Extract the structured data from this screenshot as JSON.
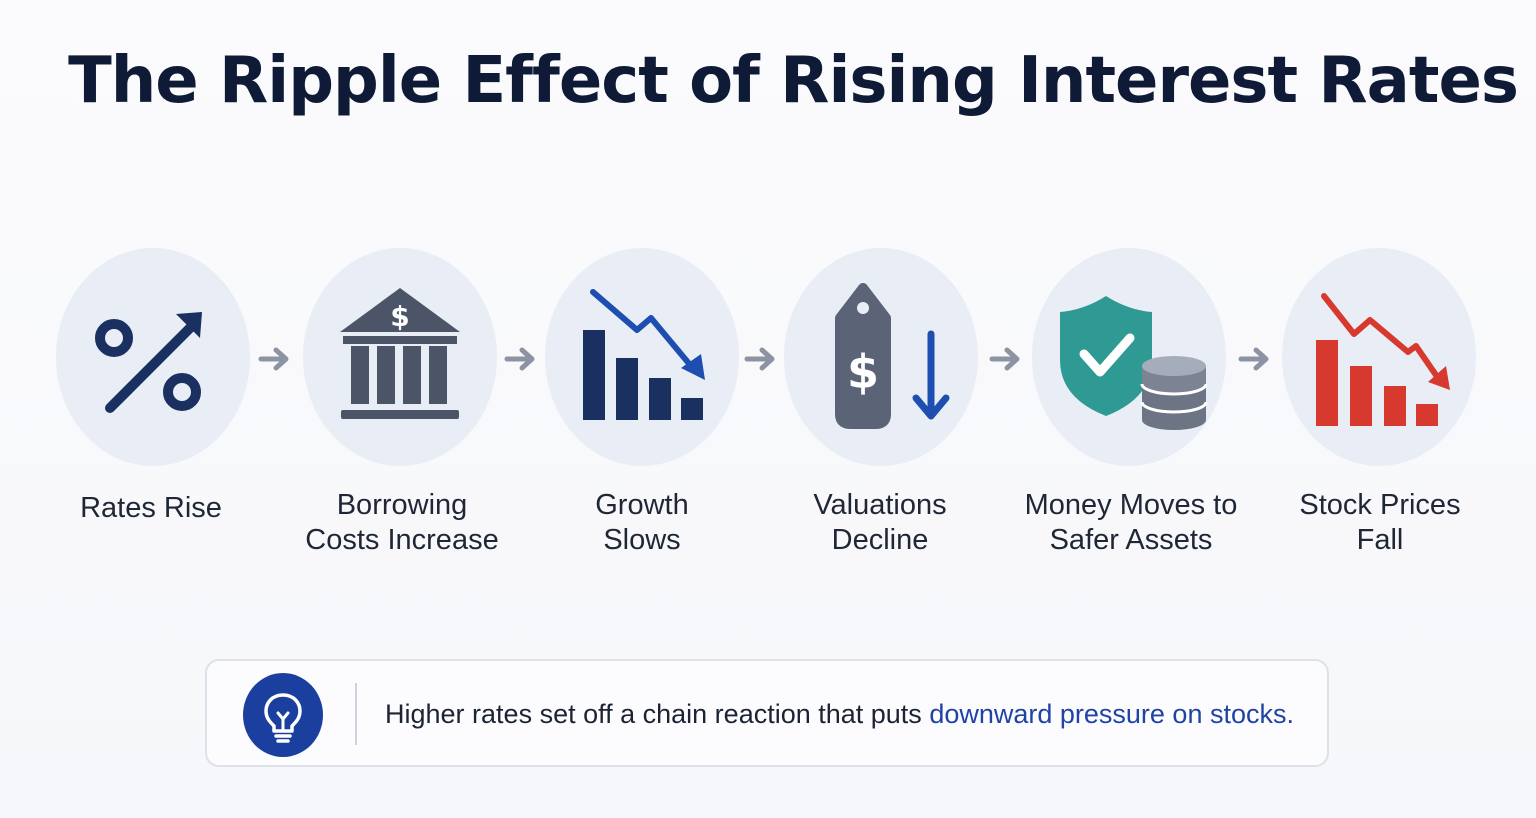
{
  "title": "The Ripple Effect of Rising Interest Rates",
  "steps": [
    {
      "icon": "percent-up-arrow-icon",
      "lines": [
        "Rates Rise"
      ]
    },
    {
      "icon": "bank-dollar-icon",
      "lines": [
        "Borrowing",
        "Costs Increase"
      ]
    },
    {
      "icon": "bar-chart-down-trend-icon",
      "lines": [
        "Growth",
        "Slows"
      ]
    },
    {
      "icon": "price-tag-down-arrow-icon",
      "lines": [
        "Valuations",
        "Decline"
      ]
    },
    {
      "icon": "shield-check-coins-icon",
      "lines": [
        "Money Moves to",
        "Safer Assets"
      ]
    },
    {
      "icon": "red-bar-chart-down-icon",
      "lines": [
        "Stock Prices",
        "Fall"
      ]
    }
  ],
  "callout": {
    "icon": "lightbulb-icon",
    "text_before": "Higher rates set off a chain reaction that puts ",
    "text_highlight": "downward pressure on stocks."
  },
  "colors": {
    "navy": "#1a3060",
    "slate": "#4c5568",
    "blue": "#1e4fb0",
    "teal": "#2f9a93",
    "red": "#d8392f",
    "circle_bg": "#e9edf5",
    "arrow_grey": "#8c93a2"
  }
}
